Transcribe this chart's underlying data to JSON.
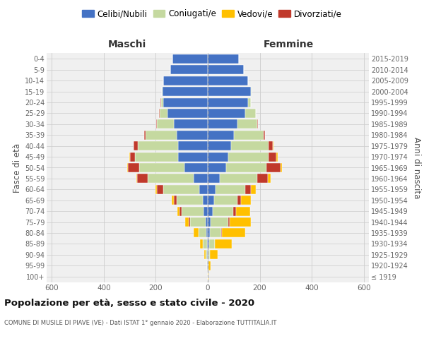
{
  "age_groups": [
    "100+",
    "95-99",
    "90-94",
    "85-89",
    "80-84",
    "75-79",
    "70-74",
    "65-69",
    "60-64",
    "55-59",
    "50-54",
    "45-49",
    "40-44",
    "35-39",
    "30-34",
    "25-29",
    "20-24",
    "15-19",
    "10-14",
    "5-9",
    "0-4"
  ],
  "birth_years": [
    "≤ 1919",
    "1920-1924",
    "1925-1929",
    "1930-1934",
    "1935-1939",
    "1940-1944",
    "1945-1949",
    "1950-1954",
    "1955-1959",
    "1960-1964",
    "1965-1969",
    "1970-1974",
    "1975-1979",
    "1980-1984",
    "1985-1989",
    "1990-1994",
    "1995-1999",
    "2000-2004",
    "2005-2009",
    "2010-2014",
    "2015-2019"
  ],
  "maschi_celibe": [
    1,
    2,
    3,
    4,
    5,
    8,
    15,
    20,
    32,
    55,
    90,
    115,
    115,
    120,
    130,
    155,
    170,
    175,
    170,
    145,
    135
  ],
  "maschi_coniugato": [
    0,
    0,
    5,
    15,
    30,
    60,
    85,
    100,
    140,
    175,
    175,
    165,
    155,
    120,
    65,
    30,
    10,
    3,
    1,
    0,
    0
  ],
  "maschi_vedovo": [
    0,
    1,
    5,
    10,
    20,
    15,
    10,
    8,
    5,
    3,
    2,
    1,
    1,
    0,
    0,
    0,
    0,
    0,
    0,
    0,
    0
  ],
  "maschi_divorziato": [
    0,
    0,
    0,
    0,
    0,
    5,
    8,
    10,
    25,
    42,
    42,
    20,
    15,
    5,
    3,
    2,
    1,
    0,
    0,
    0,
    0
  ],
  "femmine_nubile": [
    1,
    2,
    3,
    6,
    8,
    10,
    18,
    25,
    30,
    45,
    70,
    80,
    90,
    100,
    115,
    145,
    155,
    165,
    155,
    140,
    120
  ],
  "femmine_coniugata": [
    0,
    0,
    5,
    20,
    45,
    70,
    80,
    90,
    115,
    145,
    155,
    155,
    145,
    115,
    75,
    40,
    12,
    3,
    1,
    0,
    0
  ],
  "femmine_vedova": [
    2,
    10,
    30,
    65,
    90,
    80,
    55,
    40,
    20,
    10,
    5,
    3,
    2,
    1,
    0,
    0,
    0,
    0,
    0,
    0,
    0
  ],
  "femmine_divorziata": [
    0,
    0,
    0,
    1,
    2,
    5,
    10,
    12,
    20,
    42,
    55,
    30,
    15,
    5,
    3,
    1,
    0,
    0,
    0,
    0,
    0
  ],
  "color_celibe": "#4472c4",
  "color_coniugato": "#c5d9a0",
  "color_vedovo": "#ffc000",
  "color_divorziato": "#c0392b",
  "xlim": 620,
  "title": "Popolazione per età, sesso e stato civile - 2020",
  "subtitle": "COMUNE DI MUSILE DI PIAVE (VE) - Dati ISTAT 1° gennaio 2020 - Elaborazione TUTTITALIA.IT",
  "ylabel_left": "Fasce di età",
  "ylabel_right": "Anni di nascita",
  "label_maschi": "Maschi",
  "label_femmine": "Femmine",
  "legend_labels": [
    "Celibi/Nubili",
    "Coniugati/e",
    "Vedovi/e",
    "Divorziati/e"
  ],
  "bg_color": "#f0f0f0",
  "grid_color": "#cccccc"
}
